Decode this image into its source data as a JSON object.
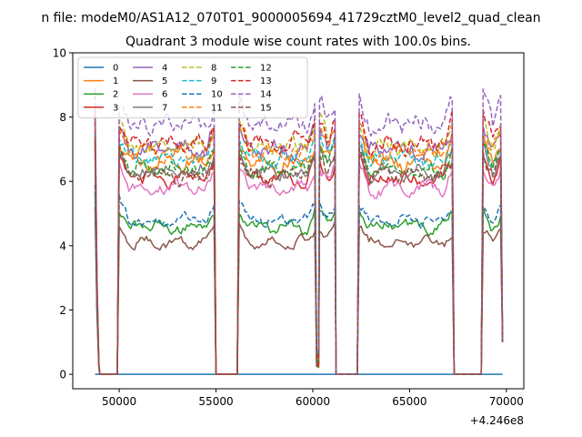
{
  "figure": {
    "suptitle": "n file: modeM0/AS1A12_070T01_9000005694_41729cztM0_level2_quad_clean"
  },
  "chart_data": {
    "type": "line",
    "title": "Quadrant 3 module wise count rates with 100.0s bins.",
    "xlabel": "",
    "ylabel": "",
    "x_offset_label": "+4.246e8",
    "xlim": [
      47600,
      70900
    ],
    "ylim": [
      -0.45,
      10
    ],
    "x_ticks": [
      50000,
      55000,
      60000,
      65000,
      70000
    ],
    "y_ticks": [
      0,
      2,
      4,
      6,
      8,
      10
    ],
    "grid": false,
    "legend": {
      "placement": "top-left",
      "columns": 4
    },
    "segments": [
      {
        "start": 48750,
        "end": 49000,
        "kind": "drop_from_start"
      },
      {
        "start": 49000,
        "end": 50000,
        "kind": "gap"
      },
      {
        "start": 50000,
        "end": 55000,
        "kind": "on"
      },
      {
        "start": 55000,
        "end": 56200,
        "kind": "gap"
      },
      {
        "start": 56200,
        "end": 60200,
        "kind": "on"
      },
      {
        "start": 60200,
        "end": 60350,
        "kind": "dip"
      },
      {
        "start": 60350,
        "end": 61200,
        "kind": "on"
      },
      {
        "start": 61200,
        "end": 62400,
        "kind": "gap"
      },
      {
        "start": 62400,
        "end": 67300,
        "kind": "on"
      },
      {
        "start": 67300,
        "end": 68800,
        "kind": "gap"
      },
      {
        "start": 68800,
        "end": 69800,
        "kind": "on"
      }
    ],
    "series": [
      {
        "name": "0",
        "color": "#1f77b4",
        "dashed": false,
        "level": 0.0
      },
      {
        "name": "1",
        "color": "#ff7f0e",
        "dashed": false,
        "level": 6.6
      },
      {
        "name": "2",
        "color": "#2ca02c",
        "dashed": false,
        "level": 4.6
      },
      {
        "name": "3",
        "color": "#d62728",
        "dashed": false,
        "level": 6.1
      },
      {
        "name": "4",
        "color": "#9467bd",
        "dashed": false,
        "level": 7.0
      },
      {
        "name": "5",
        "color": "#8c564b",
        "dashed": false,
        "level": 4.1
      },
      {
        "name": "6",
        "color": "#e377c2",
        "dashed": false,
        "level": 5.8
      },
      {
        "name": "7",
        "color": "#7f7f7f",
        "dashed": false,
        "level": 6.3
      },
      {
        "name": "8",
        "color": "#bcbd22",
        "dashed": true,
        "level": 7.1
      },
      {
        "name": "9",
        "color": "#17becf",
        "dashed": true,
        "level": 6.7
      },
      {
        "name": "10",
        "color": "#1f77b4",
        "dashed": true,
        "level": 4.8
      },
      {
        "name": "11",
        "color": "#ff7f0e",
        "dashed": true,
        "level": 6.9
      },
      {
        "name": "12",
        "color": "#2ca02c",
        "dashed": true,
        "level": 6.4
      },
      {
        "name": "13",
        "color": "#d62728",
        "dashed": true,
        "level": 7.2
      },
      {
        "name": "14",
        "color": "#9467bd",
        "dashed": true,
        "level": 7.8
      },
      {
        "name": "15",
        "color": "#8c564b",
        "dashed": true,
        "level": 6.2
      }
    ]
  }
}
